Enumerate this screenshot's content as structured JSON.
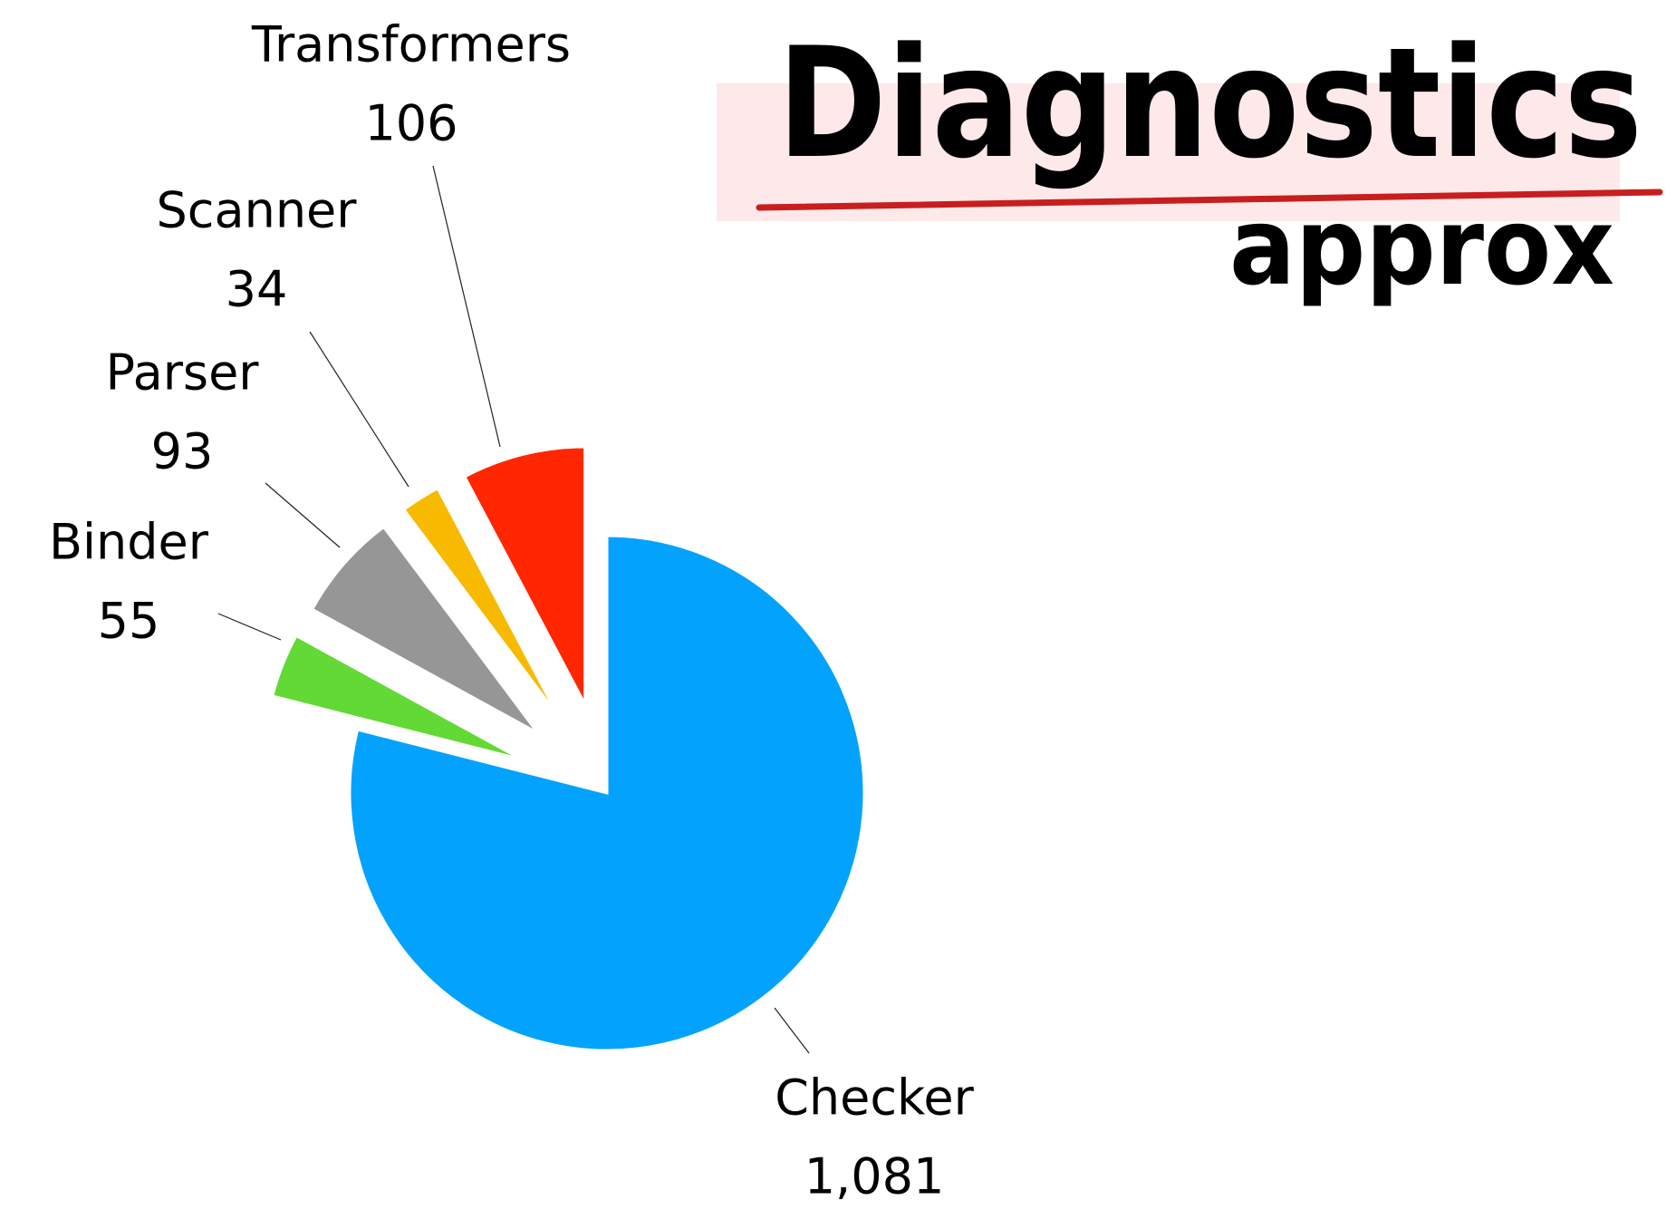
{
  "title": "Diagnostics",
  "subtitle": "approx",
  "colors": {
    "highlight": "#FDE8EA",
    "underline": "#C81E1E"
  },
  "chart_data": {
    "type": "pie",
    "exploded": [
      "Binder",
      "Parser",
      "Scanner",
      "Transformers"
    ],
    "slices": [
      {
        "label": "Checker",
        "value": 1081,
        "value_label": "1,081",
        "color": "#03A2FD"
      },
      {
        "label": "Binder",
        "value": 55,
        "value_label": "55",
        "color": "#62D935"
      },
      {
        "label": "Parser",
        "value": 93,
        "value_label": "93",
        "color": "#969696"
      },
      {
        "label": "Scanner",
        "value": 34,
        "value_label": "34",
        "color": "#F7BA00"
      },
      {
        "label": "Transformers",
        "value": 106,
        "value_label": "106",
        "color": "#FF2600"
      }
    ]
  }
}
